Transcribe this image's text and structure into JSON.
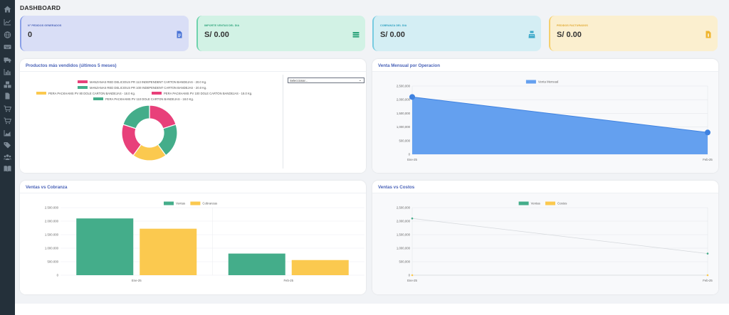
{
  "page_title": "DASHBOARD",
  "kpis": [
    {
      "label": "N° PEDIDOS GENERADOS",
      "value": "0",
      "icon": "document-icon",
      "label_color": "#4a63b8"
    },
    {
      "label": "IMPORTE VENTAS DEL DIA",
      "value": "S/ 0.00",
      "icon": "money-icon",
      "label_color": "#2ca37a"
    },
    {
      "label": "COBRANZA DEL DIA",
      "value": "S/ 0.00",
      "icon": "cash-register-icon",
      "label_color": "#2a9fbf"
    },
    {
      "label": "PEDIDOS FACTURADOS",
      "value": "S/ 0.00",
      "icon": "invoice-icon",
      "label_color": "#e0a82e"
    }
  ],
  "colors": {
    "sidebar": "#24303a",
    "pink": "#e8407a",
    "green": "#44ad8a",
    "yellow": "#fbc94f",
    "blue": "#64a0ef",
    "blue_line": "#3f82e0"
  },
  "products_card": {
    "title": "Productos más vendidos (últimos 5 meses)",
    "select_placeholder": "Seleccionar...",
    "chart_data": {
      "type": "pie",
      "labels": [
        "MANZANAS RED DELICIOUS PR 113 INDEPENDENT CARTON BANDEJAS - 20.0 Kg.",
        "MANZANAS RED DELICIOUS PR 100 INDEPENDENT CARTON BANDEJAS - 20.0 Kg.",
        "PERA PACKHAMS PV 80 DOLE CARTON BANDEJAS - 18.0 Kg.",
        "PERA PACKHAMS PV 100 DOLE CARTON BANDEJAS - 18.0 Kg.",
        "PERA PACKHAMS PV 110 DOLE CARTON BANDEJAS - 18.0 Kg."
      ],
      "values": [
        20,
        20,
        20,
        20,
        20
      ],
      "colors": [
        "#e8407a",
        "#44ad8a",
        "#fbc94f",
        "#e8407a",
        "#44ad8a"
      ],
      "legend": "top"
    }
  },
  "monthly_card": {
    "title": "Venta Mensual por Operacion",
    "chart_data": {
      "type": "area",
      "categories": [
        "Ene-25",
        "Feb-25"
      ],
      "series": [
        {
          "name": "Venta Mensual",
          "values": [
            2100000,
            800000
          ]
        }
      ],
      "ylim": [
        0,
        2500000
      ],
      "yticks": [
        "2,500,000",
        "2,000,000",
        "1,500,000",
        "1,000,000",
        "500,000",
        "0"
      ],
      "legend": "top"
    }
  },
  "cobranza_card": {
    "title": "Ventas vs Cobranza",
    "chart_data": {
      "type": "bar",
      "categories": [
        "Ene-25",
        "Feb-25"
      ],
      "series": [
        {
          "name": "Ventas",
          "values": [
            2100000,
            800000
          ]
        },
        {
          "name": "Cobranzas",
          "values": [
            1720000,
            560000
          ]
        }
      ],
      "ylim": [
        0,
        2500000
      ],
      "yticks": [
        "2.500.000",
        "2.000.000",
        "1.500.000",
        "1.000.000",
        "500.000",
        "0"
      ],
      "legend": "top"
    }
  },
  "costos_card": {
    "title": "Ventas vs Costos",
    "chart_data": {
      "type": "line",
      "categories": [
        "Ene-25",
        "Feb-25"
      ],
      "series": [
        {
          "name": "Ventas",
          "values": [
            2100000,
            800000
          ]
        },
        {
          "name": "Costos",
          "values": [
            0,
            0
          ]
        }
      ],
      "ylim": [
        0,
        2500000
      ],
      "yticks": [
        "2,500,000",
        "2,000,000",
        "1,500,000",
        "1,000,000",
        "500,000",
        "0"
      ],
      "legend": "top"
    }
  }
}
